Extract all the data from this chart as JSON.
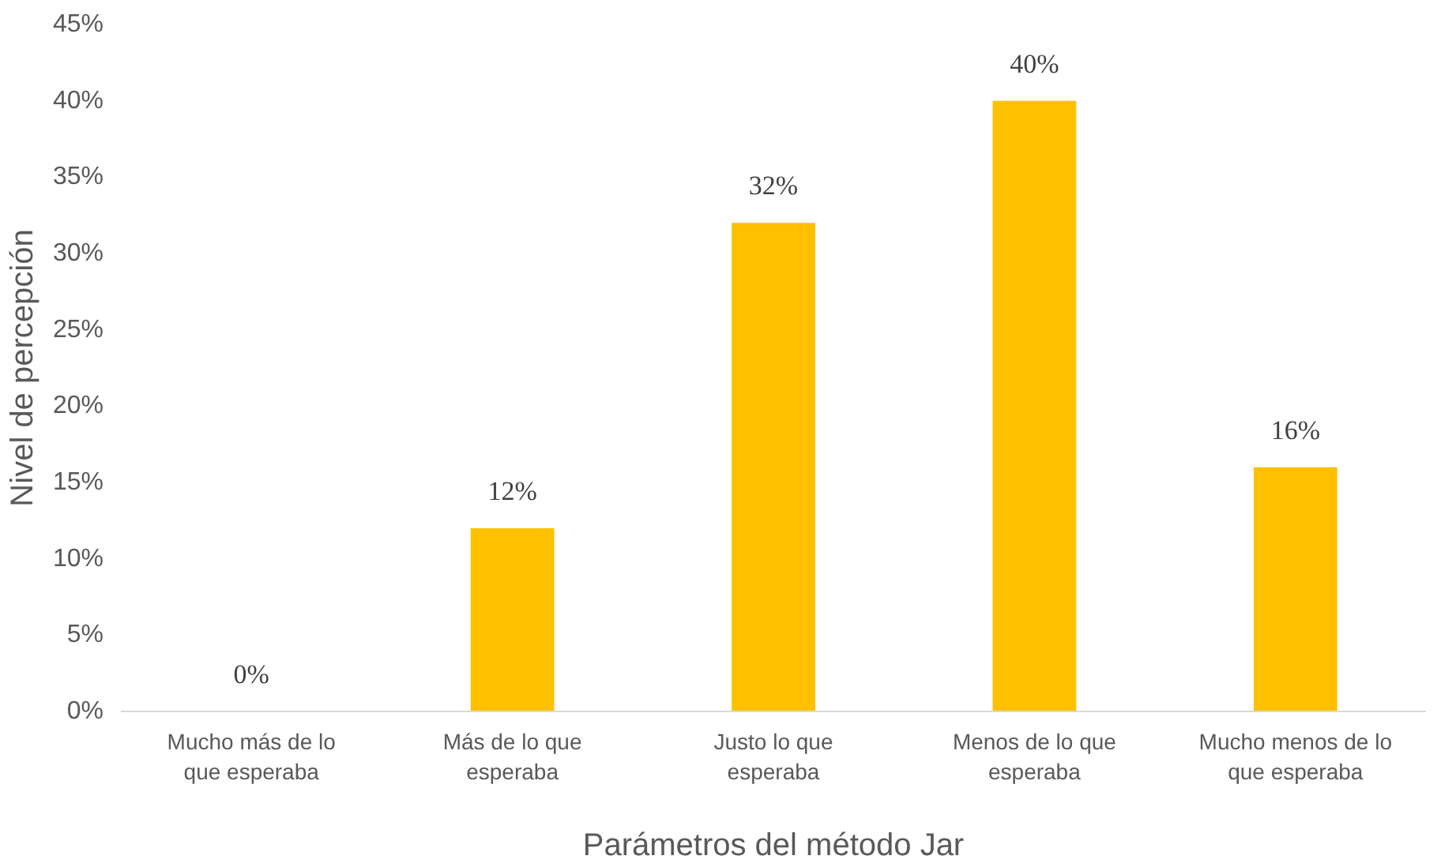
{
  "chart_data": {
    "type": "bar",
    "xlabel": "Parámetros del método Jar",
    "ylabel": "Nivel de percepción",
    "categories": [
      "Mucho más de lo que esperaba",
      "Más de lo que esperaba",
      "Justo lo que esperaba",
      "Menos de lo que esperaba",
      "Mucho menos de lo que esperaba"
    ],
    "values": [
      0,
      12,
      32,
      40,
      16
    ],
    "value_labels": [
      "0%",
      "12%",
      "32%",
      "40%",
      "16%"
    ],
    "color": "#ffc000",
    "ylim": [
      0,
      45
    ],
    "yticks": [
      {
        "value": 0,
        "label": "0%"
      },
      {
        "value": 5,
        "label": "5%"
      },
      {
        "value": 10,
        "label": "10%"
      },
      {
        "value": 15,
        "label": "15%"
      },
      {
        "value": 20,
        "label": "20%"
      },
      {
        "value": 25,
        "label": "25%"
      },
      {
        "value": 30,
        "label": "30%"
      },
      {
        "value": 35,
        "label": "35%"
      },
      {
        "value": 40,
        "label": "40%"
      },
      {
        "value": 45,
        "label": "45%"
      }
    ],
    "grid": false
  }
}
